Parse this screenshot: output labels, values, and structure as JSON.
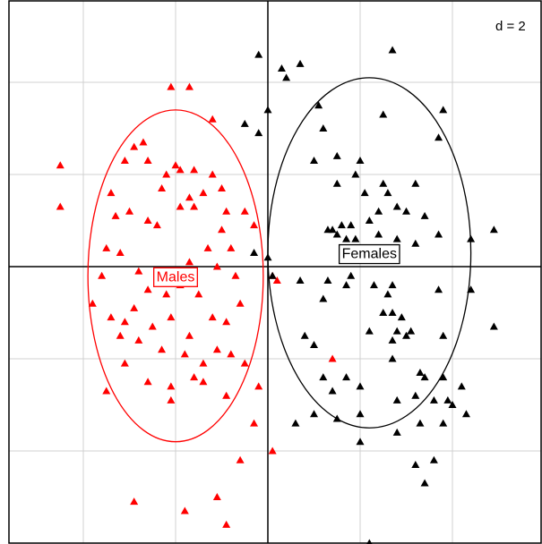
{
  "chart_data": {
    "type": "scatter",
    "scale_label": "d = 2",
    "grid": true,
    "xlim": [
      -6,
      6
    ],
    "ylim": [
      -6,
      6
    ],
    "grid_step": 2,
    "colors": {
      "Males": "#ff0000",
      "Females": "#000000",
      "grid": "#d0d0d0",
      "axis": "#000000"
    },
    "groups": [
      {
        "label": "Males",
        "color": "#ff0000",
        "ellipse": {
          "cx": -2.0,
          "cy": -0.2,
          "rx": 1.9,
          "ry": 3.6
        },
        "points": [
          [
            -4.5,
            2.2
          ],
          [
            -4.5,
            1.3
          ],
          [
            -2.1,
            3.9
          ],
          [
            -1.7,
            3.9
          ],
          [
            -2.9,
            2.6
          ],
          [
            -2.7,
            2.7
          ],
          [
            -2.6,
            2.3
          ],
          [
            -1.2,
            3.2
          ],
          [
            -3.1,
            2.3
          ],
          [
            -2.0,
            2.2
          ],
          [
            -1.6,
            2.1
          ],
          [
            -1.2,
            2.0
          ],
          [
            -1.9,
            2.1
          ],
          [
            -2.3,
            1.7
          ],
          [
            -2.2,
            2.0
          ],
          [
            -1.7,
            1.5
          ],
          [
            -1.4,
            1.6
          ],
          [
            -1.9,
            1.3
          ],
          [
            -1.0,
            1.7
          ],
          [
            -0.9,
            1.2
          ],
          [
            -1.6,
            1.3
          ],
          [
            -3.4,
            1.6
          ],
          [
            -3.3,
            1.1
          ],
          [
            -3.0,
            1.2
          ],
          [
            -2.6,
            1.0
          ],
          [
            -2.4,
            0.9
          ],
          [
            -1.0,
            0.8
          ],
          [
            -0.5,
            1.2
          ],
          [
            -0.3,
            0.9
          ],
          [
            -0.8,
            0.4
          ],
          [
            -1.3,
            0.4
          ],
          [
            -3.5,
            0.4
          ],
          [
            -3.2,
            0.3
          ],
          [
            -3.6,
            -0.2
          ],
          [
            -2.8,
            -0.1
          ],
          [
            -2.4,
            -0.1
          ],
          [
            -1.7,
            0.1
          ],
          [
            -1.1,
            0.0
          ],
          [
            -0.7,
            -0.2
          ],
          [
            -2.6,
            -0.5
          ],
          [
            -2.2,
            -0.6
          ],
          [
            -1.9,
            -0.4
          ],
          [
            -1.5,
            -0.6
          ],
          [
            -3.8,
            -0.8
          ],
          [
            -3.4,
            -1.1
          ],
          [
            -3.1,
            -1.2
          ],
          [
            -2.9,
            -0.9
          ],
          [
            -2.5,
            -1.3
          ],
          [
            -2.1,
            -1.1
          ],
          [
            -1.7,
            -1.5
          ],
          [
            -1.2,
            -1.1
          ],
          [
            -0.9,
            -1.2
          ],
          [
            -0.6,
            -0.8
          ],
          [
            -3.2,
            -1.5
          ],
          [
            -2.8,
            -1.6
          ],
          [
            -2.3,
            -1.8
          ],
          [
            -1.8,
            -1.9
          ],
          [
            -1.4,
            -2.1
          ],
          [
            -1.1,
            -1.8
          ],
          [
            -0.8,
            -1.9
          ],
          [
            -0.5,
            -2.1
          ],
          [
            -3.1,
            -2.1
          ],
          [
            -2.6,
            -2.5
          ],
          [
            -2.1,
            -2.6
          ],
          [
            -1.6,
            -2.4
          ],
          [
            -0.9,
            -2.8
          ],
          [
            -0.2,
            -2.6
          ],
          [
            -3.5,
            -2.7
          ],
          [
            -2.1,
            -2.9
          ],
          [
            -1.4,
            -2.5
          ],
          [
            0.1,
            -0.2
          ],
          [
            0.2,
            -0.3
          ],
          [
            1.4,
            -2.0
          ],
          [
            0.1,
            -4.0
          ],
          [
            -0.6,
            -4.2
          ],
          [
            -1.8,
            -5.3
          ],
          [
            -1.1,
            -5.0
          ],
          [
            -0.9,
            -5.6
          ],
          [
            -2.9,
            -5.1
          ],
          [
            -0.3,
            -3.4
          ]
        ]
      },
      {
        "label": "Females",
        "color": "#000000",
        "ellipse": {
          "cx": 2.2,
          "cy": 0.3,
          "rx": 2.2,
          "ry": 3.8
        },
        "points": [
          [
            -0.2,
            4.6
          ],
          [
            0.3,
            4.3
          ],
          [
            0.7,
            4.4
          ],
          [
            0.4,
            4.1
          ],
          [
            2.7,
            4.7
          ],
          [
            1.1,
            3.5
          ],
          [
            0.0,
            3.4
          ],
          [
            2.5,
            3.3
          ],
          [
            3.8,
            3.4
          ],
          [
            1.2,
            3.0
          ],
          [
            -0.5,
            3.1
          ],
          [
            -0.2,
            2.9
          ],
          [
            3.7,
            2.8
          ],
          [
            1.0,
            2.3
          ],
          [
            1.5,
            2.4
          ],
          [
            2.0,
            2.3
          ],
          [
            1.9,
            2.0
          ],
          [
            2.5,
            1.8
          ],
          [
            3.2,
            1.8
          ],
          [
            2.1,
            1.6
          ],
          [
            1.5,
            1.8
          ],
          [
            2.6,
            1.6
          ],
          [
            2.8,
            1.3
          ],
          [
            3.0,
            1.2
          ],
          [
            3.4,
            1.1
          ],
          [
            2.4,
            1.2
          ],
          [
            2.2,
            1.0
          ],
          [
            1.8,
            0.9
          ],
          [
            1.6,
            0.9
          ],
          [
            1.5,
            0.7
          ],
          [
            1.4,
            0.8
          ],
          [
            1.3,
            0.8
          ],
          [
            1.7,
            0.6
          ],
          [
            1.9,
            0.6
          ],
          [
            2.4,
            0.7
          ],
          [
            2.8,
            0.6
          ],
          [
            3.2,
            0.5
          ],
          [
            3.7,
            0.7
          ],
          [
            4.4,
            0.6
          ],
          [
            4.9,
            0.8
          ],
          [
            -0.3,
            0.3
          ],
          [
            0.0,
            0.2
          ],
          [
            0.1,
            -0.2
          ],
          [
            0.7,
            -0.3
          ],
          [
            1.3,
            -0.3
          ],
          [
            1.8,
            -0.2
          ],
          [
            1.7,
            -0.4
          ],
          [
            2.3,
            -0.4
          ],
          [
            2.6,
            -0.6
          ],
          [
            2.7,
            -0.4
          ],
          [
            3.7,
            -0.5
          ],
          [
            4.4,
            -0.5
          ],
          [
            1.2,
            -0.7
          ],
          [
            2.5,
            -1.0
          ],
          [
            2.7,
            -1.0
          ],
          [
            2.9,
            -1.1
          ],
          [
            2.2,
            -1.4
          ],
          [
            2.8,
            -1.4
          ],
          [
            3.0,
            -1.5
          ],
          [
            3.8,
            -1.5
          ],
          [
            2.7,
            -1.6
          ],
          [
            3.1,
            -1.4
          ],
          [
            0.8,
            -1.5
          ],
          [
            1.0,
            -1.7
          ],
          [
            1.7,
            -2.4
          ],
          [
            2.7,
            -2.0
          ],
          [
            3.3,
            -2.3
          ],
          [
            3.8,
            -2.4
          ],
          [
            1.2,
            -2.4
          ],
          [
            1.4,
            -2.7
          ],
          [
            2.0,
            -2.6
          ],
          [
            2.8,
            -2.9
          ],
          [
            3.2,
            -2.8
          ],
          [
            3.6,
            -2.9
          ],
          [
            3.9,
            -2.9
          ],
          [
            3.4,
            -2.4
          ],
          [
            4.2,
            -2.6
          ],
          [
            3.8,
            -3.4
          ],
          [
            4.0,
            -3.0
          ],
          [
            1.0,
            -3.2
          ],
          [
            1.5,
            -3.3
          ],
          [
            2.0,
            -3.2
          ],
          [
            3.3,
            -3.4
          ],
          [
            4.3,
            -3.2
          ],
          [
            0.6,
            -3.4
          ],
          [
            2.8,
            -3.6
          ],
          [
            2.0,
            -3.8
          ],
          [
            3.6,
            -4.2
          ],
          [
            3.2,
            -4.3
          ],
          [
            3.4,
            -4.7
          ],
          [
            2.2,
            -6.0
          ],
          [
            4.9,
            -1.3
          ]
        ]
      }
    ]
  }
}
